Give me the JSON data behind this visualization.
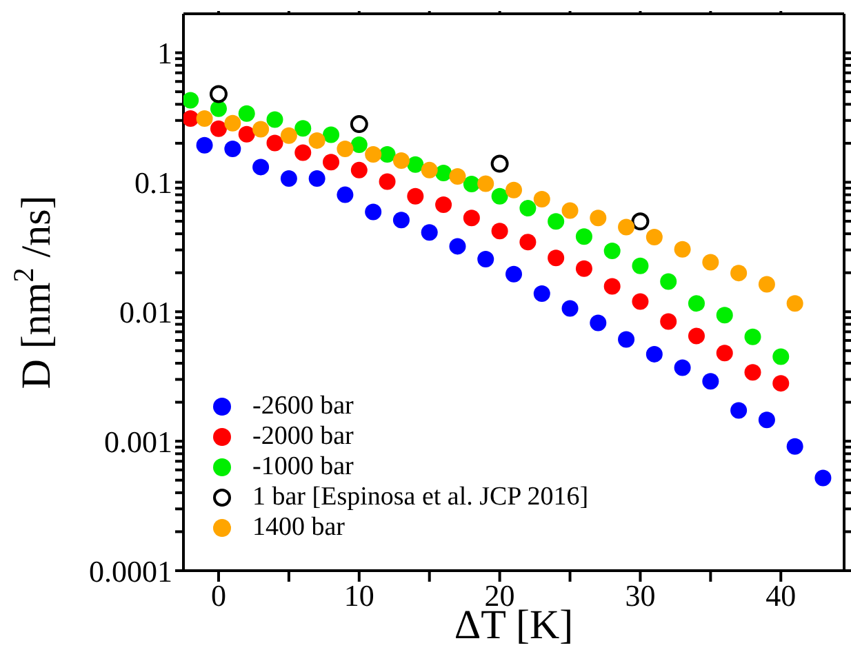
{
  "chart_data": {
    "type": "scatter",
    "xlabel": "ΔT [K]",
    "ylabel": "D [nm$^{2}$/ns]",
    "log": "y",
    "xlim": [
      -2.5,
      44.5
    ],
    "ylim": [
      0.0001,
      2
    ],
    "xticks": [
      0,
      {
        "value": 5,
        "label": null
      },
      10,
      {
        "value": 15,
        "label": null
      },
      20,
      {
        "value": 25,
        "label": null
      },
      30,
      {
        "value": 35,
        "label": null
      },
      40
    ],
    "yticks": [
      0.0001,
      {
        "value": 0.0002,
        "label": null
      },
      {
        "value": 0.0003,
        "label": null
      },
      {
        "value": 0.0004,
        "label": null
      },
      {
        "value": 0.0005,
        "label": null
      },
      {
        "value": 0.0006,
        "label": null
      },
      {
        "value": 0.0007,
        "label": null
      },
      {
        "value": 0.0008,
        "label": null
      },
      {
        "value": 0.0009,
        "label": null
      },
      0.001,
      {
        "value": 0.002,
        "label": null
      },
      {
        "value": 0.003,
        "label": null
      },
      {
        "value": 0.004,
        "label": null
      },
      {
        "value": 0.005,
        "label": null
      },
      {
        "value": 0.006,
        "label": null
      },
      {
        "value": 0.007,
        "label": null
      },
      {
        "value": 0.008,
        "label": null
      },
      {
        "value": 0.009,
        "label": null
      },
      0.01,
      {
        "value": 0.02,
        "label": null
      },
      {
        "value": 0.03,
        "label": null
      },
      {
        "value": 0.04,
        "label": null
      },
      {
        "value": 0.05,
        "label": null
      },
      {
        "value": 0.06,
        "label": null
      },
      {
        "value": 0.07,
        "label": null
      },
      {
        "value": 0.08,
        "label": null
      },
      {
        "value": 0.09,
        "label": null
      },
      0.1,
      {
        "value": 0.2,
        "label": null
      },
      {
        "value": 0.3,
        "label": null
      },
      {
        "value": 0.4,
        "label": null
      },
      {
        "value": 0.5,
        "label": null
      },
      {
        "value": 0.6,
        "label": null
      },
      {
        "value": 0.7,
        "label": null
      },
      {
        "value": 0.8,
        "label": null
      },
      {
        "value": 0.9,
        "label": null
      },
      1
    ],
    "legend": "bottom left",
    "marker": "circle",
    "series": [
      {
        "name": "-2600 bar",
        "color": "#0000ff",
        "x": [
          -1,
          1,
          3,
          5,
          7,
          9,
          11,
          13,
          15,
          17,
          19,
          21,
          23,
          25,
          27,
          29,
          31,
          33,
          35,
          37,
          39,
          41,
          43
        ],
        "values": [
          0.193,
          0.181,
          0.131,
          0.107,
          0.107,
          0.08,
          0.059,
          0.051,
          0.041,
          0.032,
          0.0255,
          0.0195,
          0.0138,
          0.0106,
          0.0082,
          0.0061,
          0.0047,
          0.0037,
          0.0029,
          0.00173,
          0.00146,
          0.00091,
          0.00052
        ]
      },
      {
        "name": "-2000 bar",
        "color": "#ff0000",
        "x": [
          -2,
          0,
          2,
          4,
          6,
          8,
          10,
          12,
          14,
          16,
          18,
          20,
          22,
          24,
          26,
          28,
          30,
          32,
          34,
          36,
          38,
          40
        ],
        "values": [
          0.31,
          0.259,
          0.235,
          0.201,
          0.169,
          0.143,
          0.124,
          0.101,
          0.078,
          0.067,
          0.053,
          0.042,
          0.0345,
          0.026,
          0.0215,
          0.0157,
          0.012,
          0.0084,
          0.0065,
          0.0048,
          0.0034,
          0.0028
        ]
      },
      {
        "name": "-1000 bar",
        "color": "#00ee00",
        "x": [
          -2,
          0,
          2,
          4,
          6,
          8,
          10,
          12,
          14,
          16,
          18,
          20,
          22,
          24,
          26,
          28,
          30,
          32,
          34,
          36,
          38,
          40
        ],
        "values": [
          0.43,
          0.37,
          0.339,
          0.305,
          0.261,
          0.233,
          0.195,
          0.164,
          0.137,
          0.118,
          0.097,
          0.078,
          0.063,
          0.0498,
          0.038,
          0.0295,
          0.0226,
          0.0171,
          0.0116,
          0.0094,
          0.0064,
          0.0045
        ]
      },
      {
        "name": "1 bar [Espinosa et al. JCP 2016]",
        "color": "#000000",
        "marker": "open circle",
        "x": [
          0,
          10,
          20,
          30
        ],
        "values": [
          0.48,
          0.281,
          0.139,
          0.0498
        ]
      },
      {
        "name": "1400 bar",
        "color": "#ffa500",
        "x": [
          -1,
          1,
          3,
          5,
          7,
          9,
          11,
          13,
          15,
          17,
          19,
          21,
          23,
          25,
          27,
          29,
          31,
          33,
          35,
          37,
          39,
          41
        ],
        "values": [
          0.31,
          0.286,
          0.257,
          0.229,
          0.21,
          0.181,
          0.164,
          0.147,
          0.124,
          0.111,
          0.0976,
          0.087,
          0.074,
          0.0605,
          0.053,
          0.045,
          0.0377,
          0.0303,
          0.0241,
          0.0199,
          0.0163,
          0.0116
        ]
      }
    ]
  }
}
